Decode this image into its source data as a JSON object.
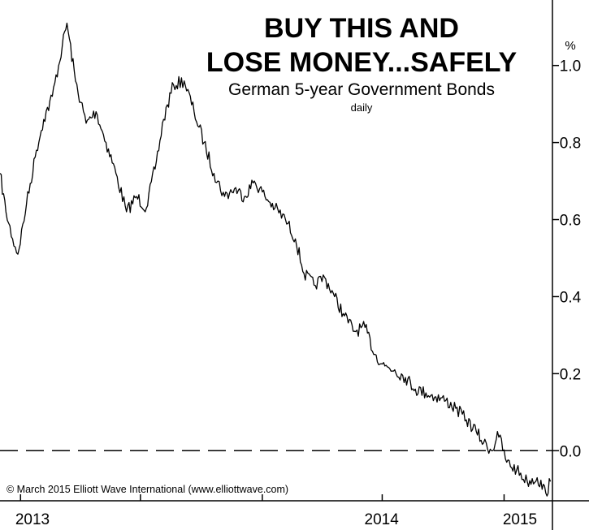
{
  "chart_data": {
    "type": "line",
    "title_line1": "BUY THIS AND",
    "title_line2": "LOSE MONEY...SAFELY",
    "subtitle": "German 5-year Government Bonds",
    "frequency": "daily",
    "unit": "%",
    "copyright": "© March 2015 Elliott Wave International (www.elliottwave.com)",
    "x_tick_labels": [
      "2013",
      "2014",
      "2015"
    ],
    "y_tick_labels": [
      "0.0",
      "0.2",
      "0.4",
      "0.6",
      "0.8",
      "1.0"
    ],
    "ylim": [
      -0.13,
      1.17
    ],
    "reference_line": 0.0,
    "x_range": [
      "2012-12-01",
      "2015-03-15"
    ],
    "series": [
      {
        "points": [
          [
            "2012-12-01",
            0.72
          ],
          [
            "2012-12-10",
            0.62
          ],
          [
            "2012-12-20",
            0.55
          ],
          [
            "2012-12-28",
            0.51
          ],
          [
            "2013-01-10",
            0.64
          ],
          [
            "2013-01-25",
            0.78
          ],
          [
            "2013-02-05",
            0.86
          ],
          [
            "2013-02-18",
            0.92
          ],
          [
            "2013-03-05",
            1.05
          ],
          [
            "2013-03-12",
            1.11
          ],
          [
            "2013-03-25",
            0.96
          ],
          [
            "2013-04-10",
            0.85
          ],
          [
            "2013-04-25",
            0.88
          ],
          [
            "2013-05-10",
            0.8
          ],
          [
            "2013-05-25",
            0.72
          ],
          [
            "2013-06-10",
            0.62
          ],
          [
            "2013-06-25",
            0.66
          ],
          [
            "2013-07-10",
            0.63
          ],
          [
            "2013-07-25",
            0.75
          ],
          [
            "2013-08-05",
            0.86
          ],
          [
            "2013-08-20",
            0.95
          ],
          [
            "2013-09-05",
            0.96
          ],
          [
            "2013-09-20",
            0.88
          ],
          [
            "2013-10-05",
            0.8
          ],
          [
            "2013-10-20",
            0.72
          ],
          [
            "2013-11-05",
            0.66
          ],
          [
            "2013-11-20",
            0.68
          ],
          [
            "2013-12-05",
            0.66
          ],
          [
            "2013-12-20",
            0.7
          ],
          [
            "2014-01-05",
            0.66
          ],
          [
            "2014-01-20",
            0.63
          ],
          [
            "2014-02-05",
            0.6
          ],
          [
            "2014-02-20",
            0.55
          ],
          [
            "2014-03-05",
            0.46
          ],
          [
            "2014-03-20",
            0.43
          ],
          [
            "2014-04-05",
            0.45
          ],
          [
            "2014-04-20",
            0.4
          ],
          [
            "2014-05-05",
            0.35
          ],
          [
            "2014-05-20",
            0.31
          ],
          [
            "2014-06-05",
            0.32
          ],
          [
            "2014-06-20",
            0.25
          ],
          [
            "2014-07-05",
            0.22
          ],
          [
            "2014-07-20",
            0.21
          ],
          [
            "2014-08-05",
            0.19
          ],
          [
            "2014-08-20",
            0.16
          ],
          [
            "2014-09-05",
            0.15
          ],
          [
            "2014-09-20",
            0.14
          ],
          [
            "2014-10-05",
            0.13
          ],
          [
            "2014-10-20",
            0.11
          ],
          [
            "2014-11-05",
            0.08
          ],
          [
            "2014-11-20",
            0.05
          ],
          [
            "2014-12-01",
            0.02
          ],
          [
            "2014-12-15",
            0.0
          ],
          [
            "2014-12-22",
            0.05
          ],
          [
            "2015-01-05",
            -0.03
          ],
          [
            "2015-01-20",
            -0.05
          ],
          [
            "2015-02-05",
            -0.08
          ],
          [
            "2015-02-20",
            -0.07
          ],
          [
            "2015-03-05",
            -0.11
          ],
          [
            "2015-03-12",
            -0.08
          ]
        ]
      }
    ]
  }
}
